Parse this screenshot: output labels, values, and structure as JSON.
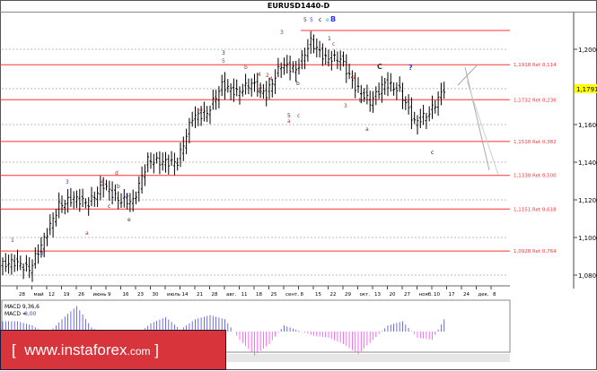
{
  "chart_data": {
    "type": "bar",
    "title": "EURUSD1440-D",
    "symbol": "EURUSD",
    "timeframe": "1440",
    "current_price": "1,1791",
    "price_ticks": [
      "1,2000",
      "1,1600",
      "1,1400",
      "1,1200",
      "1,1000",
      "1,0800"
    ],
    "price_tick_values": [
      1.2,
      1.16,
      1.14,
      1.12,
      1.1,
      1.08
    ],
    "ylim": [
      1.0765,
      1.2265
    ],
    "date_ticks": [
      "28",
      "май",
      "12",
      "19",
      "26",
      "июнь",
      "9",
      "16",
      "23",
      "30",
      "июль",
      "14",
      "21",
      "28",
      "авг.",
      "11",
      "18",
      "25",
      "сент.",
      "8",
      "15",
      "22",
      "29",
      "окт.",
      "13",
      "20",
      "27",
      "нояб.",
      "10",
      "17",
      "24",
      "дек.",
      "8"
    ],
    "weekly_closes": [
      1.087,
      1.083,
      1.099,
      1.117,
      1.121,
      1.118,
      1.128,
      1.12,
      1.119,
      1.141,
      1.14,
      1.14,
      1.164,
      1.166,
      1.181,
      1.177,
      1.182,
      1.176,
      1.192,
      1.189,
      1.204,
      1.195,
      1.195,
      1.18,
      1.172,
      1.182,
      1.178,
      1.161,
      1.166,
      1.1791
    ],
    "fib_levels": [
      {
        "value": 1.21,
        "label": ""
      },
      {
        "value": 1.1918,
        "label": "1,1918 Ret 0,114"
      },
      {
        "value": 1.1732,
        "label": "1,1732 Ret 0,236"
      },
      {
        "value": 1.151,
        "label": "1,1510 Ret 0,382"
      },
      {
        "value": 1.133,
        "label": "1,1330 Ret 0,500"
      },
      {
        "value": 1.1151,
        "label": "1,1151 Ret 0,618"
      },
      {
        "value": 1.0928,
        "label": "1,0928 Ret 0,764"
      }
    ],
    "wave_labels": [
      "1",
      "2",
      "3",
      "4",
      "5",
      "a",
      "b",
      "c",
      "d",
      "e",
      "5",
      "5",
      "c",
      "e",
      "B",
      "3",
      "3",
      "5",
      "b",
      "2",
      "1",
      "4",
      "a",
      "b",
      "2",
      "1",
      "4",
      "3",
      "5",
      "c",
      "a",
      "b",
      "c",
      "b",
      "a",
      "C",
      "?",
      "b",
      "c"
    ],
    "macd": {
      "title": "MACD 9,36,6",
      "value_label": "MACD =",
      "value": "0,00",
      "values": [
        0.0025,
        0.0025,
        0.0015,
        -0.0008,
        0.003,
        0.0062,
        0.001,
        -0.001,
        -0.0012,
        -0.001,
        0.002,
        0.0035,
        0.0005,
        0.003,
        0.004,
        0.003,
        -0.002,
        -0.0058,
        -0.003,
        0.0015,
        0.0002,
        -0.001,
        -0.0015,
        -0.003,
        -0.0055,
        -0.002,
        0.0015,
        0.0025,
        -0.0015,
        -0.002,
        0.0042
      ]
    },
    "colors": {
      "fib": "#ff3030",
      "bars": "#000000",
      "macd_pos": "#4a4ae0",
      "macd_neg": "#ff44ff",
      "price_highlight": "#ffff00",
      "banner": "#d8343c"
    }
  },
  "banner": {
    "open": "[",
    "text": "www.instaforex",
    "com": ".com",
    "close": "]"
  }
}
